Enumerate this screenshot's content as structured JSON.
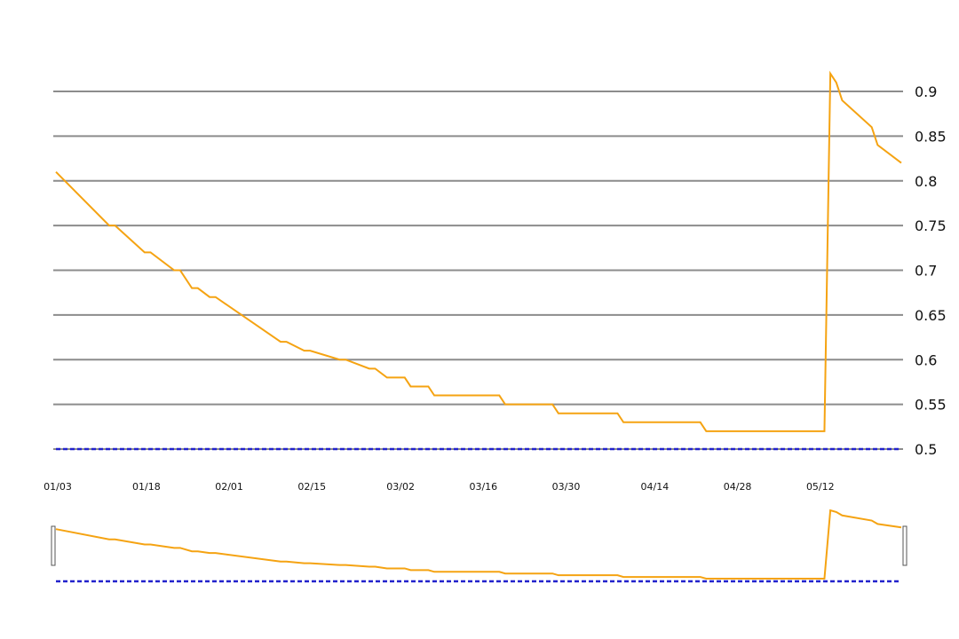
{
  "chart_data": {
    "type": "line",
    "ylim": [
      0.5,
      0.9
    ],
    "y_ticks": [
      "0.9",
      "0.85",
      "0.8",
      "0.75",
      "0.7",
      "0.65",
      "0.6",
      "0.55",
      "0.5"
    ],
    "y_tick_values": [
      0.9,
      0.85,
      0.8,
      0.75,
      0.7,
      0.65,
      0.6,
      0.55,
      0.5
    ],
    "x_ticks": [
      "01/03",
      "01/18",
      "02/01",
      "02/15",
      "03/02",
      "03/16",
      "03/30",
      "04/14",
      "04/28",
      "05/12"
    ],
    "x_tick_days": [
      0,
      15,
      29,
      43,
      58,
      72,
      86,
      101,
      115,
      129
    ],
    "x_range_days": [
      0,
      143
    ],
    "grid": true,
    "y_axis_position": "right",
    "series": [
      {
        "color": "#f5a312",
        "x_days": [
          0,
          9,
          10,
          15,
          16,
          20,
          21,
          23,
          24,
          26,
          27,
          38,
          39,
          42,
          43,
          48,
          49,
          53,
          54,
          56,
          57,
          59,
          60,
          63,
          64,
          68,
          69,
          75,
          76,
          84,
          85,
          95,
          96,
          109,
          110,
          130,
          131,
          132,
          133,
          138,
          139,
          143
        ],
        "values": [
          0.81,
          0.75,
          0.75,
          0.72,
          0.72,
          0.7,
          0.7,
          0.68,
          0.68,
          0.67,
          0.67,
          0.62,
          0.62,
          0.61,
          0.61,
          0.6,
          0.6,
          0.59,
          0.59,
          0.58,
          0.58,
          0.58,
          0.57,
          0.57,
          0.56,
          0.56,
          0.56,
          0.56,
          0.55,
          0.55,
          0.54,
          0.54,
          0.53,
          0.53,
          0.52,
          0.52,
          0.92,
          0.91,
          0.89,
          0.86,
          0.84,
          0.82
        ]
      },
      {
        "color": "#2222cc",
        "x_days": [
          0,
          143
        ],
        "values": [
          0.5,
          0.5
        ]
      }
    ],
    "navigator": {
      "enabled": true,
      "selection_days": [
        0,
        143
      ]
    }
  }
}
